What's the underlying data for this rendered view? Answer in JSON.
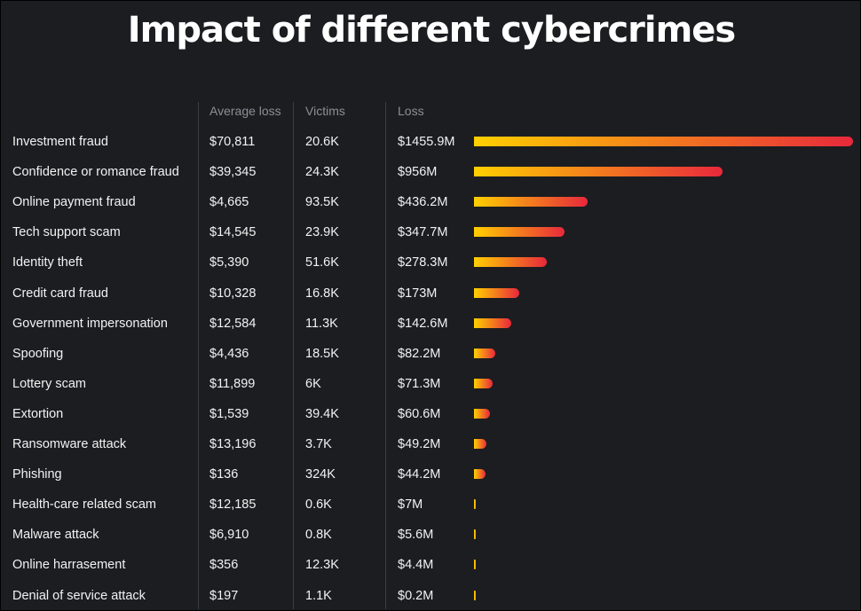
{
  "chart_data": {
    "type": "bar",
    "title": "Impact of different cybercrimes",
    "columns": [
      "Average loss",
      "Victims",
      "Loss"
    ],
    "categories": [
      "Investment fraud",
      "Confidence or romance fraud",
      "Online payment fraud",
      "Tech support scam",
      "Identity theft",
      "Credit card fraud",
      "Government impersonation",
      "Spoofing",
      "Lottery scam",
      "Extortion",
      "Ransomware attack",
      "Phishing",
      "Health-care related scam",
      "Malware attack",
      "Online harrasement",
      "Denial of service attack"
    ],
    "average_loss": [
      "$70,811",
      "$39,345",
      "$4,665",
      "$14,545",
      "$5,390",
      "$10,328",
      "$12,584",
      "$4,436",
      "$11,899",
      "$1,539",
      "$13,196",
      "$136",
      "$12,185",
      "$6,910",
      "$356",
      "$197"
    ],
    "victims": [
      "20.6K",
      "24.3K",
      "93.5K",
      "23.9K",
      "51.6K",
      "16.8K",
      "11.3K",
      "18.5K",
      "6K",
      "39.4K",
      "3.7K",
      "324K",
      "0.6K",
      "0.8K",
      "12.3K",
      "1.1K"
    ],
    "loss_labels": [
      "$1455.9M",
      "$956M",
      "$436.2M",
      "$347.7M",
      "$278.3M",
      "$173M",
      "$142.6M",
      "$82.2M",
      "$71.3M",
      "$60.6M",
      "$49.2M",
      "$44.2M",
      "$7M",
      "$5.6M",
      "$4.4M",
      "$0.2M"
    ],
    "values": [
      1455.9,
      956,
      436.2,
      347.7,
      278.3,
      173,
      142.6,
      82.2,
      71.3,
      60.6,
      49.2,
      44.2,
      7,
      5.6,
      4.4,
      0.2
    ],
    "xlim": [
      0,
      1455.9
    ],
    "grid": false,
    "colors": {
      "background": "#1c1d21",
      "bar_start": "#ffd000",
      "bar_end": "#e8283c",
      "text": "#f2f2f2",
      "header": "#8d8f96",
      "divider": "#3b3d44"
    }
  }
}
